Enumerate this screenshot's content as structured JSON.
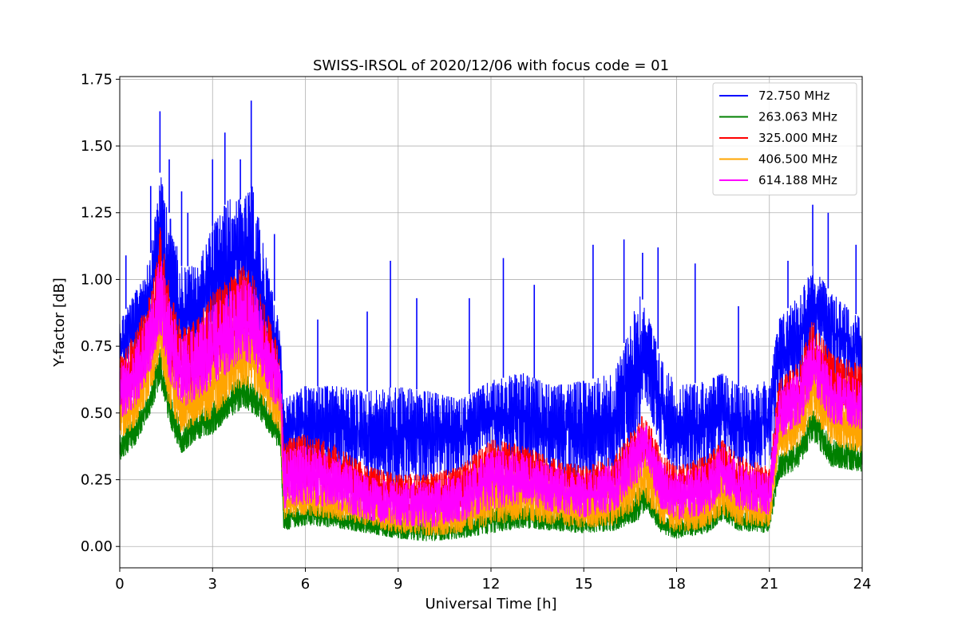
{
  "chart_data": {
    "type": "line",
    "title": "SWISS-IRSOL of 2020/12/06 with focus code = 01",
    "xlabel": "Universal Time [h]",
    "ylabel": "Y-factor [dB]",
    "xlim": [
      0,
      24
    ],
    "ylim": [
      -0.08,
      1.76
    ],
    "xticks": [
      0,
      3,
      6,
      9,
      12,
      15,
      18,
      21,
      24
    ],
    "yticks": [
      "0.00",
      "0.25",
      "0.50",
      "0.75",
      "1.00",
      "1.25",
      "1.50",
      "1.75"
    ],
    "grid": true,
    "legend_position": "top-right",
    "series": [
      {
        "name": " 72.750 MHz",
        "color": "#0000ff",
        "x": [
          0,
          0.5,
          1.0,
          1.3,
          1.6,
          2.0,
          2.5,
          3.0,
          3.5,
          4.0,
          4.3,
          4.7,
          5.2,
          5.3,
          6.0,
          7.0,
          8.0,
          9.0,
          10.0,
          11.0,
          12.0,
          13.0,
          14.0,
          15.0,
          16.0,
          16.8,
          17.0,
          17.5,
          18.0,
          19.0,
          19.5,
          20.0,
          21.0,
          21.3,
          22.0,
          22.4,
          23.0,
          24.0
        ],
        "lo": [
          0.65,
          0.7,
          0.85,
          1.0,
          0.8,
          0.7,
          0.72,
          0.8,
          0.85,
          0.88,
          0.8,
          0.7,
          0.6,
          0.3,
          0.32,
          0.3,
          0.25,
          0.22,
          0.25,
          0.28,
          0.35,
          0.3,
          0.28,
          0.25,
          0.28,
          0.45,
          0.55,
          0.35,
          0.28,
          0.3,
          0.35,
          0.3,
          0.28,
          0.55,
          0.62,
          0.75,
          0.65,
          0.6
        ],
        "hi": [
          0.85,
          0.95,
          1.1,
          1.4,
          1.25,
          1.05,
          1.05,
          1.2,
          1.3,
          1.3,
          1.35,
          1.1,
          0.8,
          0.55,
          0.6,
          0.6,
          0.58,
          0.6,
          0.58,
          0.55,
          0.62,
          0.65,
          0.6,
          0.62,
          0.65,
          0.95,
          0.9,
          0.7,
          0.6,
          0.62,
          0.65,
          0.6,
          0.62,
          0.85,
          0.95,
          1.05,
          0.95,
          0.85
        ],
        "spikes": [
          [
            0.2,
            1.09
          ],
          [
            1.0,
            1.35
          ],
          [
            1.3,
            1.63
          ],
          [
            1.6,
            1.45
          ],
          [
            2.0,
            1.33
          ],
          [
            2.2,
            1.25
          ],
          [
            3.0,
            1.45
          ],
          [
            3.4,
            1.55
          ],
          [
            3.9,
            1.45
          ],
          [
            4.25,
            1.67
          ],
          [
            5.0,
            1.17
          ],
          [
            6.4,
            0.85
          ],
          [
            8.0,
            0.88
          ],
          [
            8.75,
            1.07
          ],
          [
            9.6,
            0.93
          ],
          [
            11.3,
            0.93
          ],
          [
            12.4,
            1.08
          ],
          [
            13.4,
            0.98
          ],
          [
            15.3,
            1.13
          ],
          [
            16.3,
            1.15
          ],
          [
            16.9,
            1.1
          ],
          [
            17.4,
            1.12
          ],
          [
            18.6,
            1.06
          ],
          [
            20.0,
            0.9
          ],
          [
            21.6,
            1.07
          ],
          [
            22.4,
            1.28
          ],
          [
            22.9,
            1.25
          ],
          [
            23.8,
            1.13
          ]
        ]
      },
      {
        "name": "263.063 MHz",
        "color": "#008000",
        "x": [
          0,
          0.5,
          1.0,
          1.3,
          1.6,
          2.0,
          2.5,
          3.0,
          3.5,
          4.0,
          4.3,
          4.7,
          5.2,
          5.3,
          6.0,
          7.0,
          8.0,
          9.0,
          10.0,
          11.0,
          12.0,
          13.0,
          14.0,
          15.0,
          16.0,
          16.8,
          17.0,
          17.5,
          18.0,
          19.0,
          19.5,
          20.0,
          21.0,
          21.3,
          22.0,
          22.4,
          23.0,
          24.0
        ],
        "lo": [
          0.32,
          0.38,
          0.5,
          0.6,
          0.45,
          0.35,
          0.4,
          0.42,
          0.48,
          0.52,
          0.5,
          0.45,
          0.35,
          0.06,
          0.08,
          0.07,
          0.05,
          0.03,
          0.02,
          0.03,
          0.05,
          0.07,
          0.06,
          0.05,
          0.06,
          0.1,
          0.14,
          0.05,
          0.03,
          0.05,
          0.1,
          0.06,
          0.05,
          0.25,
          0.3,
          0.4,
          0.3,
          0.28
        ],
        "hi": [
          0.42,
          0.48,
          0.6,
          0.75,
          0.58,
          0.45,
          0.5,
          0.55,
          0.6,
          0.65,
          0.62,
          0.55,
          0.45,
          0.14,
          0.16,
          0.14,
          0.12,
          0.1,
          0.1,
          0.11,
          0.14,
          0.16,
          0.14,
          0.12,
          0.14,
          0.22,
          0.22,
          0.12,
          0.1,
          0.12,
          0.17,
          0.14,
          0.12,
          0.34,
          0.4,
          0.52,
          0.4,
          0.38
        ],
        "spikes": []
      },
      {
        "name": "325.000 MHz",
        "color": "#ff0000",
        "x": [
          0,
          0.5,
          1.0,
          1.3,
          1.6,
          2.0,
          2.5,
          3.0,
          3.5,
          4.0,
          4.3,
          4.7,
          5.2,
          5.3,
          6.0,
          7.0,
          8.0,
          9.0,
          10.0,
          11.0,
          12.0,
          13.0,
          14.0,
          15.0,
          16.0,
          16.8,
          17.0,
          17.5,
          18.0,
          19.0,
          19.5,
          20.0,
          21.0,
          21.3,
          22.0,
          22.4,
          23.0,
          24.0
        ],
        "lo": [
          0.5,
          0.55,
          0.7,
          0.85,
          0.65,
          0.55,
          0.58,
          0.62,
          0.68,
          0.72,
          0.7,
          0.62,
          0.5,
          0.18,
          0.2,
          0.18,
          0.15,
          0.12,
          0.12,
          0.14,
          0.18,
          0.2,
          0.17,
          0.15,
          0.17,
          0.3,
          0.32,
          0.2,
          0.15,
          0.18,
          0.24,
          0.18,
          0.16,
          0.42,
          0.5,
          0.62,
          0.52,
          0.48
        ],
        "hi": [
          0.72,
          0.8,
          0.95,
          1.2,
          0.98,
          0.82,
          0.85,
          0.95,
          1.0,
          1.05,
          1.02,
          0.9,
          0.72,
          0.4,
          0.42,
          0.38,
          0.3,
          0.27,
          0.27,
          0.3,
          0.4,
          0.38,
          0.33,
          0.3,
          0.34,
          0.48,
          0.5,
          0.35,
          0.3,
          0.34,
          0.4,
          0.34,
          0.3,
          0.62,
          0.7,
          0.85,
          0.72,
          0.68
        ],
        "spikes": []
      },
      {
        "name": "406.500 MHz",
        "color": "#ffa500",
        "x": [
          0,
          0.5,
          1.0,
          1.3,
          1.6,
          2.0,
          2.5,
          3.0,
          3.5,
          4.0,
          4.3,
          4.7,
          5.2,
          5.3,
          6.0,
          7.0,
          8.0,
          9.0,
          10.0,
          11.0,
          12.0,
          13.0,
          14.0,
          15.0,
          16.0,
          16.8,
          17.0,
          17.5,
          18.0,
          19.0,
          19.5,
          20.0,
          21.0,
          21.3,
          22.0,
          22.4,
          23.0,
          24.0
        ],
        "lo": [
          0.4,
          0.45,
          0.58,
          0.7,
          0.52,
          0.42,
          0.46,
          0.48,
          0.55,
          0.6,
          0.58,
          0.52,
          0.42,
          0.1,
          0.12,
          0.1,
          0.08,
          0.05,
          0.04,
          0.05,
          0.08,
          0.1,
          0.08,
          0.07,
          0.08,
          0.15,
          0.17,
          0.08,
          0.05,
          0.07,
          0.12,
          0.08,
          0.07,
          0.32,
          0.38,
          0.48,
          0.38,
          0.35
        ],
        "hi": [
          0.55,
          0.62,
          0.75,
          0.95,
          0.72,
          0.6,
          0.64,
          0.7,
          0.78,
          0.82,
          0.8,
          0.7,
          0.58,
          0.22,
          0.24,
          0.22,
          0.18,
          0.16,
          0.16,
          0.18,
          0.3,
          0.28,
          0.24,
          0.2,
          0.24,
          0.36,
          0.36,
          0.22,
          0.18,
          0.22,
          0.28,
          0.22,
          0.2,
          0.48,
          0.55,
          0.7,
          0.55,
          0.52
        ],
        "spikes": []
      },
      {
        "name": "614.188 MHz",
        "color": "#ff00ff",
        "x": [
          0,
          0.5,
          1.0,
          1.3,
          1.6,
          2.0,
          2.5,
          3.0,
          3.5,
          4.0,
          4.3,
          4.7,
          5.2,
          5.3,
          6.0,
          7.0,
          8.0,
          9.0,
          10.0,
          11.0,
          12.0,
          13.0,
          14.0,
          15.0,
          16.0,
          16.8,
          17.0,
          17.5,
          18.0,
          19.0,
          19.5,
          20.0,
          21.0,
          21.3,
          22.0,
          22.4,
          23.0,
          24.0
        ],
        "lo": [
          0.48,
          0.52,
          0.66,
          0.8,
          0.62,
          0.52,
          0.55,
          0.6,
          0.65,
          0.7,
          0.68,
          0.6,
          0.48,
          0.14,
          0.16,
          0.14,
          0.1,
          0.08,
          0.07,
          0.09,
          0.14,
          0.16,
          0.13,
          0.11,
          0.13,
          0.25,
          0.28,
          0.14,
          0.1,
          0.12,
          0.2,
          0.14,
          0.12,
          0.4,
          0.46,
          0.58,
          0.46,
          0.44
        ],
        "hi": [
          0.68,
          0.75,
          0.9,
          1.1,
          0.92,
          0.78,
          0.82,
          0.9,
          0.95,
          1.0,
          0.98,
          0.86,
          0.68,
          0.36,
          0.38,
          0.34,
          0.26,
          0.24,
          0.24,
          0.27,
          0.36,
          0.35,
          0.3,
          0.27,
          0.31,
          0.45,
          0.46,
          0.32,
          0.27,
          0.31,
          0.38,
          0.31,
          0.27,
          0.58,
          0.66,
          0.8,
          0.66,
          0.62
        ],
        "spikes": []
      }
    ]
  }
}
